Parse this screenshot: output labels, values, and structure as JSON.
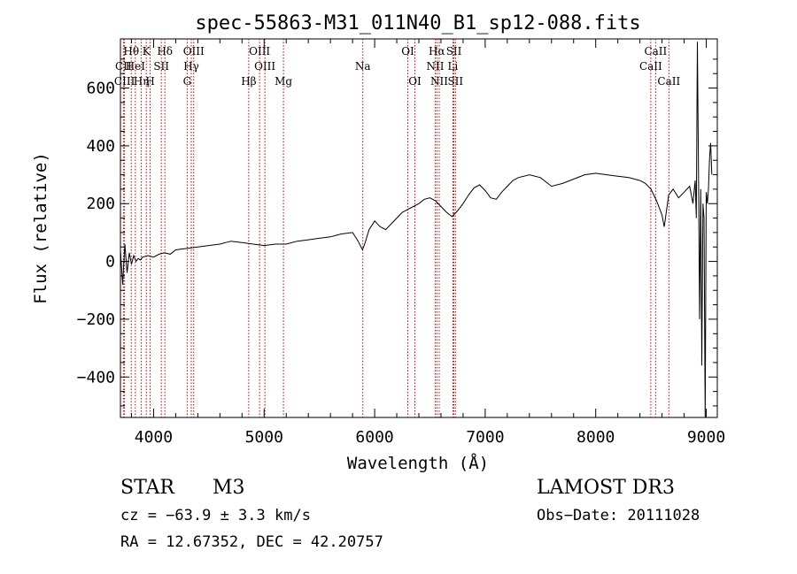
{
  "chart_data": {
    "type": "line",
    "title": "spec-55863-M31_011N40_B1_sp12-088.fits",
    "xlabel": "Wavelength (Å)",
    "ylabel": "Flux (relative)",
    "xlim": [
      3700,
      9100
    ],
    "ylim": [
      -540,
      770
    ],
    "xticks": [
      4000,
      5000,
      6000,
      7000,
      8000,
      9000
    ],
    "yticks": [
      -400,
      -200,
      0,
      200,
      400,
      600
    ],
    "xtick_labels": [
      "4000",
      "5000",
      "6000",
      "7000",
      "8000",
      "9000"
    ],
    "ytick_labels": [
      "−400",
      "−200",
      "0",
      "200",
      "400",
      "600"
    ],
    "series": [
      {
        "name": "spectrum",
        "x": [
          3700,
          3720,
          3740,
          3760,
          3780,
          3800,
          3820,
          3840,
          3860,
          3880,
          3900,
          3950,
          4000,
          4050,
          4100,
          4150,
          4200,
          4300,
          4400,
          4500,
          4600,
          4700,
          4800,
          4900,
          5000,
          5100,
          5200,
          5300,
          5400,
          5500,
          5600,
          5700,
          5800,
          5850,
          5890,
          5910,
          5950,
          6000,
          6050,
          6100,
          6150,
          6200,
          6250,
          6300,
          6350,
          6400,
          6450,
          6500,
          6550,
          6600,
          6650,
          6700,
          6750,
          6800,
          6850,
          6900,
          6950,
          7000,
          7050,
          7100,
          7150,
          7200,
          7250,
          7300,
          7400,
          7500,
          7600,
          7700,
          7800,
          7900,
          8000,
          8100,
          8200,
          8300,
          8400,
          8450,
          8500,
          8550,
          8600,
          8620,
          8660,
          8700,
          8750,
          8800,
          8850,
          8880,
          8900,
          8910,
          8920,
          8930,
          8940,
          8950,
          8960,
          8970,
          8980,
          8990,
          9000,
          9010,
          9020,
          9030,
          9040,
          9050
        ],
        "y": [
          40,
          -80,
          60,
          -40,
          30,
          -10,
          20,
          0,
          10,
          5,
          15,
          20,
          15,
          25,
          30,
          25,
          40,
          45,
          50,
          55,
          60,
          70,
          65,
          60,
          55,
          60,
          60,
          70,
          75,
          80,
          85,
          95,
          100,
          70,
          40,
          60,
          110,
          140,
          120,
          110,
          130,
          150,
          170,
          180,
          190,
          200,
          215,
          220,
          210,
          190,
          170,
          155,
          175,
          200,
          230,
          255,
          265,
          245,
          220,
          215,
          240,
          260,
          280,
          290,
          300,
          290,
          260,
          270,
          285,
          300,
          305,
          300,
          295,
          290,
          280,
          270,
          250,
          210,
          160,
          120,
          230,
          250,
          220,
          240,
          260,
          200,
          280,
          150,
          760,
          300,
          -200,
          250,
          -360,
          200,
          150,
          -600,
          240,
          200,
          250,
          360,
          410,
          300
        ]
      }
    ],
    "line_markers": [
      {
        "label": "Hθ",
        "x": 3798,
        "row": 1
      },
      {
        "label": "CII",
        "x": 3727,
        "row": 2
      },
      {
        "label": "CIII",
        "x": 3737,
        "row": 3
      },
      {
        "label": "HeI",
        "x": 3835,
        "row": 2
      },
      {
        "label": "Hη",
        "x": 3889,
        "row": 3
      },
      {
        "label": "K",
        "x": 3934,
        "row": 1
      },
      {
        "label": "H",
        "x": 3969,
        "row": 3
      },
      {
        "label": "SII",
        "x": 4070,
        "row": 2
      },
      {
        "label": "Hδ",
        "x": 4102,
        "row": 1
      },
      {
        "label": "OIII",
        "x": 4363,
        "row": 1
      },
      {
        "label": "Hγ",
        "x": 4341,
        "row": 2
      },
      {
        "label": "G",
        "x": 4304,
        "row": 3
      },
      {
        "label": "Hβ",
        "x": 4861,
        "row": 3
      },
      {
        "label": "OIII",
        "x": 4959,
        "row": 1
      },
      {
        "label": "OIII",
        "x": 5007,
        "row": 2
      },
      {
        "label": "Mg",
        "x": 5175,
        "row": 3
      },
      {
        "label": "Na",
        "x": 5893,
        "row": 2
      },
      {
        "label": "OI",
        "x": 6300,
        "row": 1
      },
      {
        "label": "OI",
        "x": 6364,
        "row": 3
      },
      {
        "label": "Hα",
        "x": 6563,
        "row": 1
      },
      {
        "label": "NII",
        "x": 6548,
        "row": 2
      },
      {
        "label": "NII",
        "x": 6584,
        "row": 3
      },
      {
        "label": "SII",
        "x": 6717,
        "row": 1
      },
      {
        "label": "Li",
        "x": 6708,
        "row": 2
      },
      {
        "label": "SII",
        "x": 6731,
        "row": 3
      },
      {
        "label": "CaII",
        "x": 8542,
        "row": 1
      },
      {
        "label": "CaII",
        "x": 8498,
        "row": 2
      },
      {
        "label": "CaII",
        "x": 8662,
        "row": 3
      }
    ]
  },
  "info": {
    "object_type": "STAR",
    "subclass": "M3",
    "survey": "LAMOST DR3",
    "cz": "cz = −63.9 ± 3.3 km/s",
    "obs_date": "Obs−Date: 20111028",
    "coords": "RA =  12.67352, DEC =  42.20757"
  },
  "colors": {
    "spectrum": "#000000",
    "marker_line": "#c00000",
    "text": "#000000"
  }
}
